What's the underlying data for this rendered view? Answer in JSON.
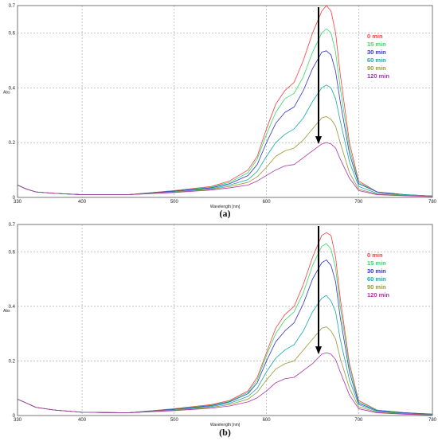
{
  "chart_data": [
    {
      "type": "line",
      "caption": "(a)",
      "ylabel": "Abs",
      "xlabel": "Wavelength [nm]",
      "xlim": [
        330,
        780
      ],
      "ylim": [
        0,
        0.7
      ],
      "x_ticks": [
        "330",
        "400",
        "500",
        "600",
        "700",
        "780"
      ],
      "y_ticks": [
        "0",
        "0.2",
        "0.4",
        "0.6",
        "0.7"
      ],
      "grid": true,
      "legend_position": "top-right",
      "annotation": "downward arrow at ~660 nm indicating decrease of absorbance over time",
      "x": [
        330,
        340,
        350,
        370,
        400,
        450,
        500,
        540,
        560,
        580,
        590,
        600,
        610,
        620,
        630,
        640,
        650,
        660,
        665,
        670,
        675,
        680,
        690,
        700,
        720,
        750,
        780
      ],
      "series": [
        {
          "name": "0 min",
          "color": "#ff3b3b",
          "values": [
            0.045,
            0.03,
            0.02,
            0.015,
            0.01,
            0.01,
            0.025,
            0.04,
            0.06,
            0.1,
            0.15,
            0.25,
            0.34,
            0.39,
            0.42,
            0.5,
            0.6,
            0.68,
            0.7,
            0.68,
            0.6,
            0.45,
            0.2,
            0.06,
            0.02,
            0.01,
            0.005
          ]
        },
        {
          "name": "15 min",
          "color": "#33dd66",
          "values": [
            0.045,
            0.03,
            0.02,
            0.015,
            0.01,
            0.01,
            0.024,
            0.038,
            0.055,
            0.09,
            0.14,
            0.23,
            0.31,
            0.36,
            0.38,
            0.44,
            0.53,
            0.6,
            0.615,
            0.6,
            0.53,
            0.4,
            0.18,
            0.055,
            0.02,
            0.01,
            0.005
          ]
        },
        {
          "name": "30 min",
          "color": "#3333cc",
          "values": [
            0.045,
            0.03,
            0.02,
            0.015,
            0.01,
            0.01,
            0.023,
            0.035,
            0.05,
            0.08,
            0.12,
            0.2,
            0.27,
            0.31,
            0.33,
            0.39,
            0.47,
            0.53,
            0.535,
            0.52,
            0.46,
            0.35,
            0.16,
            0.05,
            0.02,
            0.01,
            0.005
          ]
        },
        {
          "name": "60 min",
          "color": "#11aaaa",
          "values": [
            0.045,
            0.03,
            0.02,
            0.015,
            0.01,
            0.01,
            0.021,
            0.032,
            0.045,
            0.065,
            0.095,
            0.15,
            0.2,
            0.23,
            0.25,
            0.29,
            0.35,
            0.4,
            0.41,
            0.4,
            0.36,
            0.28,
            0.13,
            0.04,
            0.015,
            0.01,
            0.005
          ]
        },
        {
          "name": "90 min",
          "color": "#999933",
          "values": [
            0.045,
            0.03,
            0.02,
            0.015,
            0.01,
            0.01,
            0.02,
            0.03,
            0.04,
            0.055,
            0.075,
            0.11,
            0.15,
            0.17,
            0.18,
            0.21,
            0.25,
            0.29,
            0.295,
            0.285,
            0.26,
            0.2,
            0.09,
            0.03,
            0.012,
            0.008,
            0.004
          ]
        },
        {
          "name": "120 min",
          "color": "#aa33aa",
          "values": [
            0.045,
            0.03,
            0.02,
            0.015,
            0.01,
            0.01,
            0.018,
            0.027,
            0.035,
            0.045,
            0.06,
            0.08,
            0.1,
            0.115,
            0.12,
            0.145,
            0.17,
            0.195,
            0.2,
            0.195,
            0.18,
            0.14,
            0.07,
            0.025,
            0.01,
            0.006,
            0.003
          ]
        }
      ]
    },
    {
      "type": "line",
      "caption": "(b)",
      "ylabel": "Abs",
      "xlabel": "Wavelength [nm]",
      "xlim": [
        330,
        780
      ],
      "ylim": [
        0,
        0.7
      ],
      "x_ticks": [
        "330",
        "400",
        "500",
        "600",
        "700",
        "780"
      ],
      "y_ticks": [
        "0",
        "0.2",
        "0.4",
        "0.6",
        "0.7"
      ],
      "grid": true,
      "legend_position": "top-right",
      "annotation": "downward arrow at ~660 nm indicating decrease of absorbance over time",
      "x": [
        330,
        340,
        350,
        370,
        400,
        450,
        500,
        540,
        560,
        580,
        590,
        600,
        610,
        620,
        630,
        640,
        650,
        660,
        665,
        670,
        675,
        680,
        690,
        700,
        720,
        750,
        780
      ],
      "series": [
        {
          "name": "0 min",
          "color": "#ff3b3b",
          "values": [
            0.06,
            0.045,
            0.03,
            0.02,
            0.012,
            0.01,
            0.025,
            0.04,
            0.055,
            0.09,
            0.14,
            0.23,
            0.32,
            0.37,
            0.4,
            0.48,
            0.58,
            0.66,
            0.67,
            0.66,
            0.58,
            0.43,
            0.19,
            0.055,
            0.02,
            0.01,
            0.005
          ]
        },
        {
          "name": "15 min",
          "color": "#33dd66",
          "values": [
            0.06,
            0.045,
            0.03,
            0.02,
            0.012,
            0.01,
            0.024,
            0.038,
            0.052,
            0.085,
            0.13,
            0.22,
            0.3,
            0.35,
            0.38,
            0.45,
            0.55,
            0.62,
            0.63,
            0.61,
            0.54,
            0.4,
            0.18,
            0.05,
            0.02,
            0.01,
            0.005
          ]
        },
        {
          "name": "30 min",
          "color": "#3333cc",
          "values": [
            0.06,
            0.045,
            0.03,
            0.02,
            0.012,
            0.01,
            0.023,
            0.036,
            0.05,
            0.08,
            0.12,
            0.2,
            0.27,
            0.31,
            0.34,
            0.41,
            0.5,
            0.56,
            0.57,
            0.55,
            0.49,
            0.36,
            0.16,
            0.045,
            0.018,
            0.01,
            0.005
          ]
        },
        {
          "name": "60 min",
          "color": "#11aaaa",
          "values": [
            0.06,
            0.045,
            0.03,
            0.02,
            0.012,
            0.01,
            0.021,
            0.033,
            0.045,
            0.07,
            0.1,
            0.16,
            0.21,
            0.24,
            0.26,
            0.31,
            0.38,
            0.43,
            0.44,
            0.42,
            0.38,
            0.28,
            0.13,
            0.04,
            0.015,
            0.008,
            0.004
          ]
        },
        {
          "name": "90 min",
          "color": "#999933",
          "values": [
            0.06,
            0.045,
            0.03,
            0.02,
            0.012,
            0.01,
            0.02,
            0.03,
            0.04,
            0.06,
            0.085,
            0.13,
            0.17,
            0.19,
            0.2,
            0.24,
            0.28,
            0.32,
            0.325,
            0.31,
            0.28,
            0.21,
            0.1,
            0.032,
            0.012,
            0.007,
            0.003
          ]
        },
        {
          "name": "120 min",
          "color": "#aa33aa",
          "values": [
            0.06,
            0.045,
            0.03,
            0.02,
            0.012,
            0.01,
            0.018,
            0.027,
            0.035,
            0.05,
            0.065,
            0.09,
            0.12,
            0.135,
            0.14,
            0.165,
            0.19,
            0.225,
            0.23,
            0.225,
            0.205,
            0.16,
            0.075,
            0.025,
            0.01,
            0.005,
            0.002
          ]
        }
      ]
    }
  ]
}
